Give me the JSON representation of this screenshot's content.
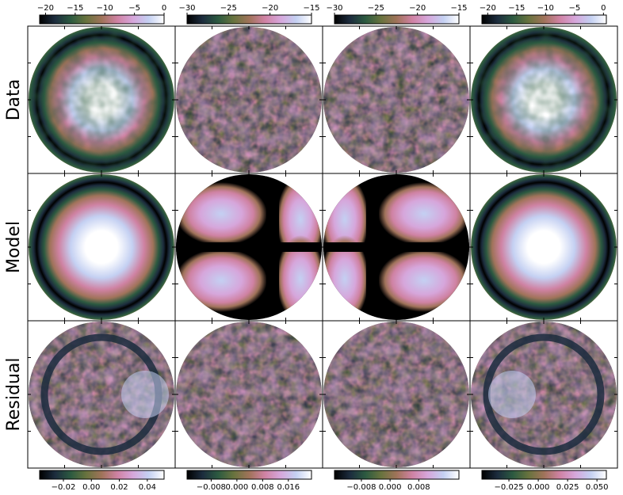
{
  "row_labels": [
    "Data",
    "Model",
    "Residual"
  ],
  "top_colorbars": [
    {
      "ticks": [
        {
          "value": -20,
          "label": "−20"
        },
        {
          "value": -15,
          "label": "−15"
        },
        {
          "value": -10,
          "label": "−10"
        },
        {
          "value": -5,
          "label": "−5"
        },
        {
          "value": 0,
          "label": "0"
        }
      ],
      "range": [
        -21,
        0
      ]
    },
    {
      "ticks": [
        {
          "value": -30,
          "label": "−30"
        },
        {
          "value": -25,
          "label": "−25"
        },
        {
          "value": -20,
          "label": "−20"
        },
        {
          "value": -15,
          "label": "−15"
        }
      ],
      "range": [
        -30,
        -15
      ]
    },
    {
      "ticks": [
        {
          "value": -30,
          "label": "−30"
        },
        {
          "value": -25,
          "label": "−25"
        },
        {
          "value": -20,
          "label": "−20"
        },
        {
          "value": -15,
          "label": "−15"
        }
      ],
      "range": [
        -30,
        -15
      ]
    },
    {
      "ticks": [
        {
          "value": -20,
          "label": "−20"
        },
        {
          "value": -15,
          "label": "−15"
        },
        {
          "value": -10,
          "label": "−10"
        },
        {
          "value": -5,
          "label": "−5"
        },
        {
          "value": 0,
          "label": "0"
        }
      ],
      "range": [
        -21,
        0.5
      ]
    }
  ],
  "bottom_colorbars": [
    {
      "ticks": [
        {
          "value": -0.02,
          "label": "−0.02"
        },
        {
          "value": 0.0,
          "label": "0.00"
        },
        {
          "value": 0.02,
          "label": "0.02"
        },
        {
          "value": 0.04,
          "label": "0.04"
        }
      ],
      "range": [
        -0.037,
        0.052
      ]
    },
    {
      "ticks": [
        {
          "value": -0.008,
          "label": "−0.008"
        },
        {
          "value": 0.0,
          "label": "0.000"
        },
        {
          "value": 0.008,
          "label": "0.008"
        },
        {
          "value": 0.016,
          "label": "0.016"
        }
      ],
      "range": [
        -0.0155,
        0.0232
      ]
    },
    {
      "ticks": [
        {
          "value": -0.008,
          "label": "−0.008"
        },
        {
          "value": 0.0,
          "label": "0.000"
        },
        {
          "value": 0.008,
          "label": "0.008"
        }
      ],
      "range": [
        -0.0155,
        0.0192
      ]
    },
    {
      "ticks": [
        {
          "value": -0.025,
          "label": "−0.025"
        },
        {
          "value": 0.0,
          "label": "0.000"
        },
        {
          "value": 0.025,
          "label": "0.025"
        },
        {
          "value": 0.05,
          "label": "0.050"
        }
      ],
      "range": [
        -0.048,
        0.058
      ]
    }
  ],
  "colormap": [
    "#000000",
    "#1c2c3e",
    "#2c5a40",
    "#68733e",
    "#a0735a",
    "#cf82a3",
    "#d6a6db",
    "#c4d0f2",
    "#ffffff"
  ],
  "chart_data": {
    "type": "heatmap",
    "layout": "3x4 grid of circular maps",
    "rows": [
      "Data",
      "Model",
      "Residual"
    ],
    "columns": 4
  }
}
